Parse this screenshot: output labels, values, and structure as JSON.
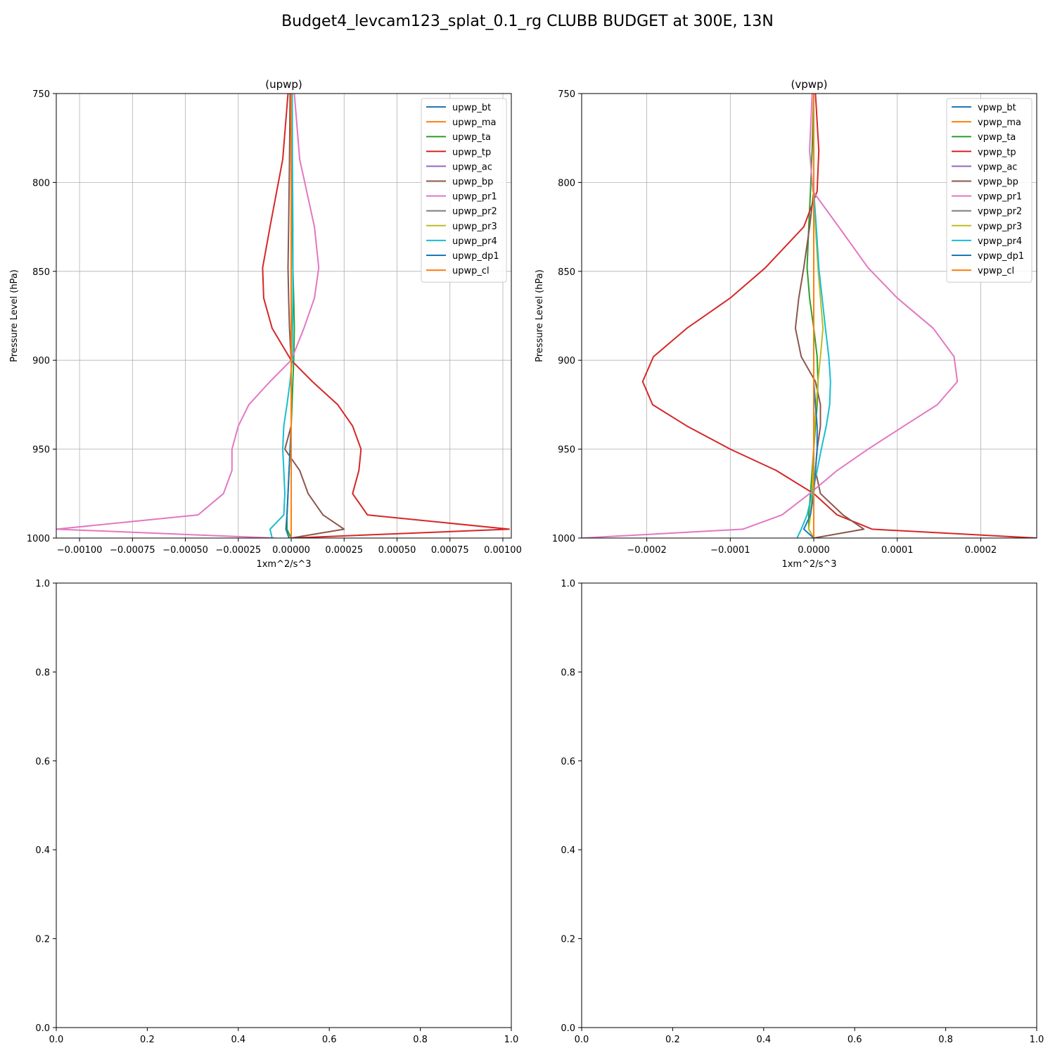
{
  "figure": {
    "title": "Budget4_levcam123_splat_0.1_rg CLUBB BUDGET at 300E, 13N"
  },
  "chart_data": [
    {
      "type": "line",
      "title": "(upwp)",
      "xlabel": "1xm^2/s^3",
      "ylabel": "Pressure Level (hPa)",
      "xlim": [
        -0.00111,
        0.00104
      ],
      "ylim": [
        1000,
        750
      ],
      "y_inverted": true,
      "xticks": [
        -0.001,
        -0.00075,
        -0.0005,
        -0.00025,
        0,
        0.00025,
        0.0005,
        0.00075,
        0.001
      ],
      "xtick_labels": [
        "−0.00100",
        "−0.00075",
        "−0.00050",
        "−0.00025",
        "0.00000",
        "0.00025",
        "0.00050",
        "0.00075",
        "0.00100"
      ],
      "yticks": [
        750,
        800,
        850,
        900,
        950,
        1000
      ],
      "ytick_labels": [
        "750",
        "800",
        "850",
        "900",
        "950",
        "1000"
      ],
      "grid": true,
      "legend_position": "upper-right",
      "levels": [
        750,
        787,
        825,
        848,
        865,
        882,
        900,
        912,
        925,
        937,
        950,
        962,
        975,
        987,
        995,
        1000
      ],
      "series": [
        {
          "name": "upwp_bt",
          "color": "#1f77b4",
          "values": [
            0,
            0,
            0,
            0,
            0,
            0,
            0,
            0,
            0,
            0,
            0,
            0,
            0,
            0,
            0,
            0
          ]
        },
        {
          "name": "upwp_ma",
          "color": "#ff7f0e",
          "values": [
            0,
            0,
            0,
            0,
            0,
            0,
            0,
            0,
            0,
            0,
            0,
            0,
            0,
            0,
            0,
            0
          ]
        },
        {
          "name": "upwp_ta",
          "color": "#2ca02c",
          "values": [
            2e-06,
            4e-06,
            6e-06,
            8e-06,
            1.2e-05,
            1.5e-05,
            1.2e-05,
            8e-06,
            4e-06,
            0,
            -5e-06,
            -1e-05,
            -1.5e-05,
            -2e-05,
            -2e-05,
            0
          ]
        },
        {
          "name": "upwp_tp",
          "color": "#d62728",
          "values": [
            -1.5e-05,
            -4e-05,
            -0.0001,
            -0.000135,
            -0.00013,
            -9e-05,
            0,
            0.0001,
            0.00022,
            0.00029,
            0.00033,
            0.00032,
            0.00029,
            0.00036,
            0.00103,
            0
          ]
        },
        {
          "name": "upwp_ac",
          "color": "#9467bd",
          "values": [
            0,
            0,
            0,
            0,
            0,
            0,
            0,
            0,
            0,
            0,
            0,
            0,
            0,
            0,
            0,
            0
          ]
        },
        {
          "name": "upwp_bp",
          "color": "#8c564b",
          "values": [
            -5e-06,
            -8e-06,
            -1.2e-05,
            -1.5e-05,
            -1.2e-05,
            -8e-06,
            0,
            0,
            0,
            0,
            -3e-05,
            4e-05,
            8e-05,
            0.00015,
            0.00025,
            0
          ]
        },
        {
          "name": "upwp_pr1",
          "color": "#e377c2",
          "values": [
            1.5e-05,
            4e-05,
            0.00011,
            0.00013,
            0.00011,
            6e-05,
            0,
            -0.0001,
            -0.0002,
            -0.00025,
            -0.00028,
            -0.00028,
            -0.00032,
            -0.00044,
            -0.00111,
            -8e-05
          ]
        },
        {
          "name": "upwp_pr2",
          "color": "#7f7f7f",
          "values": [
            0,
            0,
            0,
            0,
            0,
            0,
            0,
            0,
            0,
            0,
            0,
            0,
            0,
            0,
            0,
            0
          ]
        },
        {
          "name": "upwp_pr3",
          "color": "#bcbd22",
          "values": [
            0,
            0,
            0,
            0,
            0,
            0,
            0,
            0,
            0,
            0,
            0,
            0,
            0,
            0,
            0,
            0
          ]
        },
        {
          "name": "upwp_pr4",
          "color": "#17becf",
          "values": [
            5e-06,
            6e-06,
            8e-06,
            8e-06,
            8e-06,
            6e-06,
            4e-06,
            -5e-06,
            -2e-05,
            -3.5e-05,
            -4e-05,
            -3.5e-05,
            -3e-05,
            -3.5e-05,
            -0.0001,
            -9e-05
          ]
        },
        {
          "name": "upwp_dp1",
          "color": "#1f77b4",
          "values": [
            0,
            0,
            0,
            0,
            0,
            0,
            0,
            0,
            0,
            0,
            -5e-06,
            -1e-05,
            -1.5e-05,
            -2e-05,
            -2.5e-05,
            -1e-05
          ]
        },
        {
          "name": "upwp_cl",
          "color": "#ff7f0e",
          "values": [
            0,
            0,
            0,
            0,
            0,
            0,
            0,
            0,
            0,
            0,
            0,
            0,
            0,
            0,
            0,
            0
          ]
        }
      ]
    },
    {
      "type": "line",
      "title": "(vpwp)",
      "xlabel": "1xm^2/s^3",
      "ylabel": "Pressure Level (hPa)",
      "xlim": [
        -0.000278,
        0.000267
      ],
      "ylim": [
        1000,
        750
      ],
      "y_inverted": true,
      "xticks": [
        -0.0002,
        -0.0001,
        0,
        0.0001,
        0.0002
      ],
      "xtick_labels": [
        "−0.0002",
        "−0.0001",
        "0.0000",
        "0.0001",
        "0.0002"
      ],
      "yticks": [
        750,
        800,
        850,
        900,
        950,
        1000
      ],
      "ytick_labels": [
        "750",
        "800",
        "850",
        "900",
        "950",
        "1000"
      ],
      "grid": true,
      "legend_position": "upper-right",
      "levels": [
        750,
        782,
        805,
        825,
        848,
        865,
        882,
        898,
        912,
        925,
        937,
        950,
        962,
        975,
        987,
        995,
        1000
      ],
      "series": [
        {
          "name": "vpwp_bt",
          "color": "#1f77b4",
          "values": [
            0,
            0,
            0,
            0,
            0,
            0,
            0,
            0,
            0,
            0,
            0,
            0,
            0,
            0,
            0,
            0,
            0
          ]
        },
        {
          "name": "vpwp_ma",
          "color": "#ff7f0e",
          "values": [
            0,
            0,
            0,
            0,
            0,
            0,
            0,
            0,
            0,
            0,
            0,
            0,
            0,
            0,
            0,
            0,
            0
          ]
        },
        {
          "name": "vpwp_ta",
          "color": "#2ca02c",
          "values": [
            0,
            -2e-06,
            -4e-06,
            -6e-06,
            -8e-06,
            -5e-06,
            0,
            4e-06,
            5e-06,
            4e-06,
            2e-06,
            0,
            -2e-06,
            -4e-06,
            -6e-06,
            -6e-06,
            0
          ]
        },
        {
          "name": "vpwp_tp",
          "color": "#d62728",
          "values": [
            2e-06,
            6e-06,
            4e-06,
            -1.2e-05,
            -5.8e-05,
            -0.0001,
            -0.000152,
            -0.000192,
            -0.000205,
            -0.000193,
            -0.000152,
            -0.0001,
            -4.5e-05,
            0,
            2.8e-05,
            7e-05,
            0.000267
          ]
        },
        {
          "name": "vpwp_ac",
          "color": "#9467bd",
          "values": [
            0,
            0,
            0,
            0,
            0,
            0,
            0,
            0,
            0,
            0,
            0,
            0,
            0,
            0,
            0,
            0,
            0
          ]
        },
        {
          "name": "vpwp_bp",
          "color": "#8c564b",
          "values": [
            0,
            0,
            0,
            -5e-06,
            -1.2e-05,
            -1.8e-05,
            -2.2e-05,
            -1.5e-05,
            2e-06,
            8e-06,
            8e-06,
            4e-06,
            2e-06,
            8e-06,
            3.5e-05,
            6e-05,
            0
          ]
        },
        {
          "name": "vpwp_pr1",
          "color": "#e377c2",
          "values": [
            -2e-06,
            -5e-06,
            -1e-06,
            3e-05,
            6.5e-05,
            0.0001,
            0.000143,
            0.000168,
            0.000172,
            0.000148,
            0.000108,
            6.5e-05,
            2.8e-05,
            -5e-06,
            -3.8e-05,
            -8.5e-05,
            -0.000278
          ]
        },
        {
          "name": "vpwp_pr2",
          "color": "#7f7f7f",
          "values": [
            0,
            0,
            0,
            0,
            0,
            0,
            0,
            0,
            0,
            0,
            0,
            0,
            0,
            0,
            0,
            0,
            0
          ]
        },
        {
          "name": "vpwp_pr3",
          "color": "#bcbd22",
          "values": [
            0,
            0,
            0,
            2e-06,
            5e-06,
            8e-06,
            1.1e-05,
            8e-06,
            5e-06,
            3e-06,
            1e-06,
            0,
            -1e-06,
            -2e-06,
            -4e-06,
            -6e-06,
            0
          ]
        },
        {
          "name": "vpwp_pr4",
          "color": "#17becf",
          "values": [
            0,
            0,
            0,
            3e-06,
            6e-06,
            1e-05,
            1.4e-05,
            1.8e-05,
            2e-05,
            1.9e-05,
            1.5e-05,
            9e-06,
            4e-06,
            -2e-06,
            -8e-06,
            -1.5e-05,
            -2e-05
          ]
        },
        {
          "name": "vpwp_dp1",
          "color": "#1f77b4",
          "values": [
            0,
            0,
            0,
            0,
            0,
            0,
            0,
            0,
            0,
            2e-06,
            4e-06,
            4e-06,
            2e-06,
            0,
            -4e-06,
            -1.2e-05,
            0
          ]
        },
        {
          "name": "vpwp_cl",
          "color": "#ff7f0e",
          "values": [
            0,
            0,
            0,
            0,
            0,
            0,
            0,
            0,
            0,
            0,
            0,
            0,
            0,
            0,
            0,
            0,
            0
          ]
        }
      ]
    },
    {
      "type": "line",
      "xlim": [
        0,
        1
      ],
      "ylim": [
        0,
        1
      ],
      "xticks": [
        0,
        0.2,
        0.4,
        0.6,
        0.8,
        1
      ],
      "xtick_labels": [
        "0.0",
        "0.2",
        "0.4",
        "0.6",
        "0.8",
        "1.0"
      ],
      "yticks": [
        0,
        0.2,
        0.4,
        0.6,
        0.8,
        1
      ],
      "ytick_labels": [
        "0.0",
        "0.2",
        "0.4",
        "0.6",
        "0.8",
        "1.0"
      ],
      "grid": false,
      "series": []
    },
    {
      "type": "line",
      "xlim": [
        0,
        1
      ],
      "ylim": [
        0,
        1
      ],
      "xticks": [
        0,
        0.2,
        0.4,
        0.6,
        0.8,
        1
      ],
      "xtick_labels": [
        "0.0",
        "0.2",
        "0.4",
        "0.6",
        "0.8",
        "1.0"
      ],
      "yticks": [
        0,
        0.2,
        0.4,
        0.6,
        0.8,
        1
      ],
      "ytick_labels": [
        "0.0",
        "0.2",
        "0.4",
        "0.6",
        "0.8",
        "1.0"
      ],
      "grid": false,
      "series": []
    }
  ]
}
